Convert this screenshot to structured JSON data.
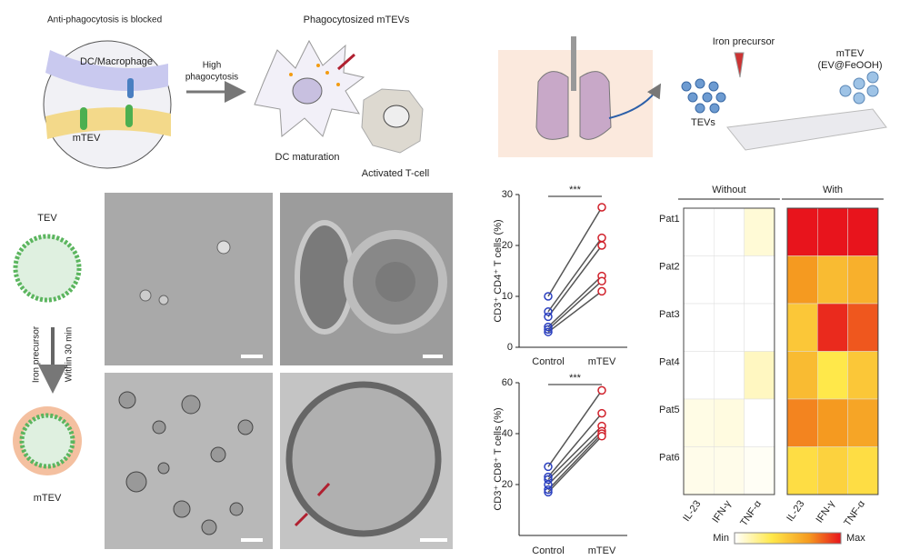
{
  "top_left": {
    "caption": "Anti-phagocytosis is blocked",
    "membrane_top": "DC/Macrophage",
    "membrane_bottom": "mTEV",
    "arrow_label_1": "High",
    "arrow_label_2": "phagocytosis",
    "title": "Phagocytosized mTEVs",
    "dc_label": "DC maturation",
    "tcell_label": "Activated T-cell"
  },
  "top_right": {
    "precursor": "Iron precursor",
    "product_1": "mTEV",
    "product_2": "(EV@FeOOH)",
    "tevs": "TEVs"
  },
  "left_schematic": {
    "top_label": "TEV",
    "arrow_label_1": "Iron precursor",
    "arrow_label_2": "Within 30 min",
    "bottom_label": "mTEV"
  },
  "cd4_plot": {
    "y_label": "CD3⁺ CD4⁺ T cells (%)",
    "categories": [
      "Control",
      "mTEV"
    ],
    "significance": "***",
    "ylim": [
      0,
      30
    ],
    "yticks": [
      0,
      10,
      20,
      30
    ],
    "control": [
      10,
      7,
      6,
      4,
      3.5,
      3
    ],
    "mtev": [
      27.5,
      21.5,
      20,
      14,
      13,
      11
    ]
  },
  "cd8_plot": {
    "y_label": "CD3⁺ CD8⁺ T cells (%)",
    "categories": [
      "Control",
      "mTEV"
    ],
    "significance": "***",
    "ylim": [
      0,
      60
    ],
    "yticks": [
      20,
      40,
      60
    ],
    "control": [
      27,
      23,
      22,
      20,
      18,
      17
    ],
    "mtev": [
      57,
      48,
      43,
      41,
      40,
      39
    ]
  },
  "heatmap": {
    "groups": [
      "Without",
      "With"
    ],
    "rows": [
      "Pat1",
      "Pat2",
      "Pat3",
      "Pat4",
      "Pat5",
      "Pat6"
    ],
    "columns": [
      "IL-23",
      "IFN-γ",
      "TNF-α"
    ],
    "without": [
      [
        0,
        0,
        0.08
      ],
      [
        0,
        0,
        0
      ],
      [
        0,
        0,
        0
      ],
      [
        0,
        0,
        0.12
      ],
      [
        0.05,
        0.06,
        0
      ],
      [
        0.04,
        0.04,
        0.02
      ]
    ],
    "with": [
      [
        1,
        1,
        1
      ],
      [
        0.7,
        0.55,
        0.6
      ],
      [
        0.5,
        0.95,
        0.85
      ],
      [
        0.55,
        0.35,
        0.5
      ],
      [
        0.75,
        0.7,
        0.65
      ],
      [
        0.4,
        0.45,
        0.4
      ]
    ],
    "legend_min": "Min",
    "legend_max": "Max"
  }
}
